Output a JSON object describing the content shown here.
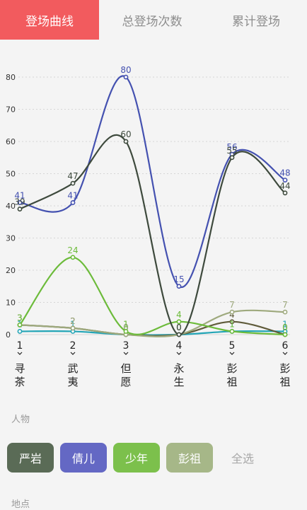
{
  "tabs": [
    {
      "label": "登场曲线"
    },
    {
      "label": "总登场次数"
    },
    {
      "label": "累计登场"
    }
  ],
  "chart_data": {
    "type": "line",
    "x": [
      1,
      2,
      3,
      4,
      5,
      6
    ],
    "categories": [
      "寻茶",
      "武夷",
      "但愿",
      "永生",
      "彭祖",
      "彭祖"
    ],
    "ylim": [
      0,
      85
    ],
    "yticks": [
      0,
      10,
      20,
      30,
      40,
      50,
      60,
      70,
      80
    ],
    "grid": true,
    "series": [
      {
        "color": "#3e4a3d",
        "values": [
          39,
          47,
          60,
          0,
          55,
          44
        ]
      },
      {
        "color": "#4451b0",
        "values": [
          41,
          41,
          80,
          15,
          56,
          48
        ]
      },
      {
        "color": "#6cbb3a",
        "values": [
          3,
          24,
          1,
          4,
          1,
          0
        ]
      },
      {
        "color": "#9ea97d",
        "values": [
          3,
          2,
          0,
          0,
          7,
          7
        ]
      },
      {
        "color": "#5f5b3a",
        "values": [
          3,
          2,
          0,
          0,
          4,
          0
        ]
      },
      {
        "color": "#23a5b6",
        "values": [
          1,
          1,
          0,
          0,
          1,
          1
        ]
      }
    ]
  },
  "people": {
    "label": "人物",
    "chips": [
      {
        "label": "严岩",
        "color": "#5a6b56"
      },
      {
        "label": "倩儿",
        "color": "#6468c4"
      },
      {
        "label": "少年",
        "color": "#7cc04c"
      },
      {
        "label": "彭祖",
        "color": "#a6b788"
      },
      {
        "label": "全选",
        "color": ""
      }
    ]
  },
  "place": {
    "label": "地点"
  }
}
